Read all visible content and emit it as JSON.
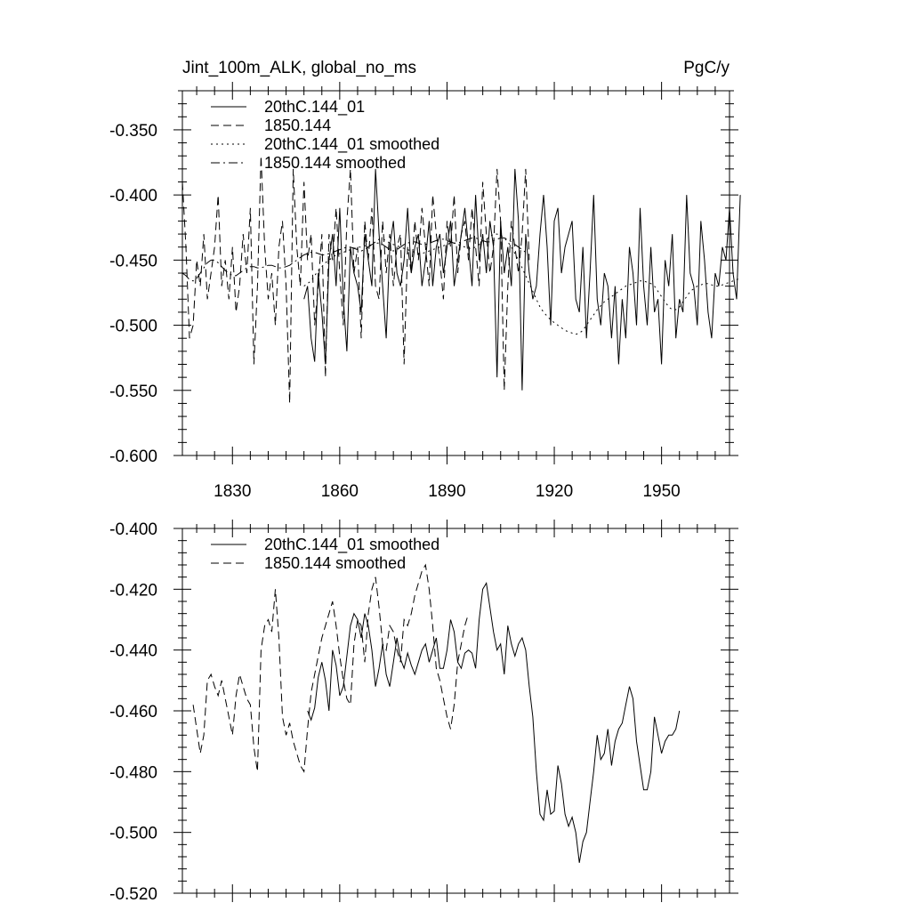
{
  "chart_data": [
    {
      "type": "line",
      "title": "Jint_100m_ALK, global_no_ms",
      "units": "PgC/y",
      "xlabel": "",
      "ylabel": "",
      "xlim": [
        1816,
        1969
      ],
      "ylim": [
        -0.6,
        -0.32
      ],
      "xticks": [
        1830,
        1860,
        1890,
        1920,
        1950
      ],
      "xtick_labels": [
        "1830",
        "1860",
        "1890",
        "1920",
        "1950"
      ],
      "yticks": [
        -0.35,
        -0.4,
        -0.45,
        -0.5,
        -0.55,
        -0.6
      ],
      "ytick_labels": [
        "-0.350",
        "-0.400",
        "-0.450",
        "-0.500",
        "-0.550",
        "-0.600"
      ],
      "legend_position": "top-left",
      "series": [
        {
          "name": "20thC.144_01",
          "style": "solid",
          "x_start": 1850,
          "values": [
            -0.48,
            -0.47,
            -0.51,
            -0.528,
            -0.46,
            -0.49,
            -0.53,
            -0.45,
            -0.43,
            -0.47,
            -0.41,
            -0.48,
            -0.52,
            -0.44,
            -0.46,
            -0.47,
            -0.49,
            -0.43,
            -0.45,
            -0.47,
            -0.38,
            -0.43,
            -0.47,
            -0.51,
            -0.44,
            -0.42,
            -0.46,
            -0.47,
            -0.45,
            -0.41,
            -0.46,
            -0.44,
            -0.43,
            -0.47,
            -0.45,
            -0.42,
            -0.47,
            -0.44,
            -0.43,
            -0.46,
            -0.44,
            -0.42,
            -0.47,
            -0.45,
            -0.43,
            -0.41,
            -0.44,
            -0.47,
            -0.4,
            -0.45,
            -0.43,
            -0.46,
            -0.42,
            -0.44,
            -0.54,
            -0.42,
            -0.46,
            -0.44,
            -0.47,
            -0.38,
            -0.42,
            -0.55,
            -0.43,
            -0.46,
            -0.48,
            -0.47,
            -0.43,
            -0.4,
            -0.44,
            -0.5,
            -0.42,
            -0.41,
            -0.46,
            -0.44,
            -0.43,
            -0.42,
            -0.48,
            -0.49,
            -0.44,
            -0.51,
            -0.46,
            -0.4,
            -0.48,
            -0.5,
            -0.46,
            -0.47,
            -0.51,
            -0.47,
            -0.53,
            -0.48,
            -0.51,
            -0.44,
            -0.46,
            -0.5,
            -0.41,
            -0.47,
            -0.5,
            -0.44,
            -0.49,
            -0.48,
            -0.53,
            -0.45,
            -0.47,
            -0.43,
            -0.51,
            -0.48,
            -0.49,
            -0.4,
            -0.46,
            -0.47,
            -0.5,
            -0.42,
            -0.45,
            -0.49,
            -0.51,
            -0.46,
            -0.47,
            -0.44,
            -0.45,
            -0.41,
            -0.46,
            -0.48,
            -0.4
          ]
        },
        {
          "name": "1850.144",
          "style": "dashed",
          "x_start": 1816,
          "values": [
            -0.39,
            -0.44,
            -0.51,
            -0.5,
            -0.45,
            -0.47,
            -0.43,
            -0.48,
            -0.46,
            -0.44,
            -0.4,
            -0.47,
            -0.45,
            -0.48,
            -0.44,
            -0.49,
            -0.47,
            -0.43,
            -0.46,
            -0.41,
            -0.53,
            -0.47,
            -0.37,
            -0.44,
            -0.48,
            -0.46,
            -0.5,
            -0.44,
            -0.42,
            -0.47,
            -0.56,
            -0.38,
            -0.44,
            -0.47,
            -0.39,
            -0.45,
            -0.43,
            -0.5,
            -0.47,
            -0.43,
            -0.54,
            -0.43,
            -0.45,
            -0.41,
            -0.46,
            -0.5,
            -0.42,
            -0.38,
            -0.46,
            -0.44,
            -0.51,
            -0.42,
            -0.45,
            -0.41,
            -0.47,
            -0.48,
            -0.42,
            -0.46,
            -0.43,
            -0.47,
            -0.44,
            -0.43,
            -0.53,
            -0.44,
            -0.46,
            -0.42,
            -0.45,
            -0.41,
            -0.44,
            -0.47,
            -0.4,
            -0.43,
            -0.45,
            -0.48,
            -0.42,
            -0.44,
            -0.4,
            -0.46,
            -0.43,
            -0.42,
            -0.45,
            -0.41,
            -0.44,
            -0.47,
            -0.39,
            -0.43,
            -0.46,
            -0.44,
            -0.38,
            -0.42,
            -0.55,
            -0.47,
            -0.42,
            -0.44,
            -0.46,
            -0.43,
            -0.38,
            -0.45
          ]
        },
        {
          "name": "20thC.144_01 smoothed",
          "style": "dotted",
          "x_start": 1850,
          "values": [
            -0.47,
            -0.468,
            -0.466,
            -0.462,
            -0.458,
            -0.455,
            -0.452,
            -0.45,
            -0.448,
            -0.446,
            -0.445,
            -0.444,
            -0.443,
            -0.442,
            -0.441,
            -0.44,
            -0.44,
            -0.439,
            -0.439,
            -0.438,
            -0.436,
            -0.434,
            -0.434,
            -0.435,
            -0.437,
            -0.438,
            -0.439,
            -0.44,
            -0.441,
            -0.442,
            -0.443,
            -0.444,
            -0.445,
            -0.445,
            -0.444,
            -0.443,
            -0.442,
            -0.441,
            -0.44,
            -0.439,
            -0.438,
            -0.437,
            -0.437,
            -0.438,
            -0.439,
            -0.44,
            -0.441,
            -0.441,
            -0.44,
            -0.438,
            -0.436,
            -0.434,
            -0.432,
            -0.43,
            -0.43,
            -0.431,
            -0.433,
            -0.436,
            -0.44,
            -0.445,
            -0.45,
            -0.456,
            -0.462,
            -0.468,
            -0.474,
            -0.48,
            -0.486,
            -0.49,
            -0.493,
            -0.496,
            -0.498,
            -0.5,
            -0.502,
            -0.504,
            -0.505,
            -0.506,
            -0.507,
            -0.506,
            -0.504,
            -0.5,
            -0.496,
            -0.492,
            -0.488,
            -0.485,
            -0.482,
            -0.48,
            -0.478,
            -0.476,
            -0.474,
            -0.472,
            -0.47,
            -0.469,
            -0.468,
            -0.467,
            -0.466,
            -0.466,
            -0.467,
            -0.468,
            -0.47,
            -0.474,
            -0.478,
            -0.482,
            -0.486,
            -0.488,
            -0.488,
            -0.486,
            -0.482,
            -0.478,
            -0.474,
            -0.472,
            -0.47,
            -0.469,
            -0.468,
            -0.468,
            -0.469,
            -0.47,
            -0.47,
            -0.469,
            -0.468,
            -0.467,
            -0.466,
            -0.465,
            -0.464
          ]
        },
        {
          "name": "1850.144 smoothed",
          "style": "dashdot",
          "x_start": 1816,
          "values": [
            -0.46,
            -0.462,
            -0.465,
            -0.466,
            -0.464,
            -0.46,
            -0.456,
            -0.452,
            -0.45,
            -0.45,
            -0.452,
            -0.455,
            -0.458,
            -0.46,
            -0.462,
            -0.462,
            -0.46,
            -0.458,
            -0.456,
            -0.455,
            -0.455,
            -0.456,
            -0.456,
            -0.455,
            -0.454,
            -0.454,
            -0.455,
            -0.456,
            -0.456,
            -0.455,
            -0.454,
            -0.452,
            -0.45,
            -0.448,
            -0.446,
            -0.445,
            -0.444,
            -0.444,
            -0.445,
            -0.446,
            -0.446,
            -0.445,
            -0.444,
            -0.443,
            -0.442,
            -0.441,
            -0.44,
            -0.44,
            -0.441,
            -0.442,
            -0.443,
            -0.442,
            -0.44,
            -0.438,
            -0.437,
            -0.437,
            -0.438,
            -0.44,
            -0.442,
            -0.443,
            -0.442,
            -0.44,
            -0.438,
            -0.437,
            -0.436,
            -0.436,
            -0.437,
            -0.438,
            -0.438,
            -0.437,
            -0.436,
            -0.435,
            -0.434,
            -0.434,
            -0.435,
            -0.436,
            -0.437,
            -0.437,
            -0.436,
            -0.435,
            -0.434,
            -0.433,
            -0.433,
            -0.434,
            -0.435,
            -0.436,
            -0.436,
            -0.435,
            -0.434,
            -0.433,
            -0.433,
            -0.434,
            -0.436,
            -0.438,
            -0.44,
            -0.442,
            -0.444,
            -0.446
          ]
        }
      ]
    },
    {
      "type": "line",
      "title": "",
      "xlabel": "",
      "ylabel": "",
      "xlim": [
        1816,
        1969
      ],
      "ylim": [
        -0.52,
        -0.4
      ],
      "xticks": [
        1830,
        1860,
        1890,
        1920,
        1950
      ],
      "yticks": [
        -0.4,
        -0.42,
        -0.44,
        -0.46,
        -0.48,
        -0.5,
        -0.52
      ],
      "ytick_labels": [
        "-0.400",
        "-0.420",
        "-0.440",
        "-0.460",
        "-0.480",
        "-0.500",
        "-0.520"
      ],
      "legend_position": "top-left",
      "series": [
        {
          "name": "20thC.144_01 smoothed",
          "style": "solid",
          "x_start": 1851,
          "values": [
            -0.46,
            -0.463,
            -0.459,
            -0.449,
            -0.444,
            -0.45,
            -0.46,
            -0.44,
            -0.445,
            -0.455,
            -0.452,
            -0.442,
            -0.432,
            -0.428,
            -0.43,
            -0.436,
            -0.428,
            -0.432,
            -0.44,
            -0.452,
            -0.446,
            -0.438,
            -0.448,
            -0.452,
            -0.444,
            -0.436,
            -0.443,
            -0.446,
            -0.441,
            -0.445,
            -0.448,
            -0.444,
            -0.44,
            -0.438,
            -0.444,
            -0.44,
            -0.436,
            -0.446,
            -0.446,
            -0.44,
            -0.43,
            -0.434,
            -0.444,
            -0.446,
            -0.441,
            -0.44,
            -0.441,
            -0.446,
            -0.43,
            -0.42,
            -0.418,
            -0.426,
            -0.434,
            -0.44,
            -0.438,
            -0.448,
            -0.432,
            -0.438,
            -0.442,
            -0.438,
            -0.436,
            -0.44,
            -0.452,
            -0.462,
            -0.48,
            -0.494,
            -0.496,
            -0.486,
            -0.494,
            -0.493,
            -0.478,
            -0.484,
            -0.494,
            -0.498,
            -0.495,
            -0.5,
            -0.51,
            -0.503,
            -0.5,
            -0.49,
            -0.48,
            -0.468,
            -0.476,
            -0.474,
            -0.466,
            -0.478,
            -0.47,
            -0.466,
            -0.464,
            -0.458,
            -0.452,
            -0.456,
            -0.47,
            -0.478,
            -0.486,
            -0.486,
            -0.48,
            -0.462,
            -0.468,
            -0.474,
            -0.47,
            -0.468,
            -0.468,
            -0.466,
            -0.46
          ]
        },
        {
          "name": "1850.144 smoothed",
          "style": "dashed",
          "x_start": 1819,
          "values": [
            -0.458,
            -0.466,
            -0.474,
            -0.468,
            -0.45,
            -0.448,
            -0.452,
            -0.455,
            -0.45,
            -0.456,
            -0.462,
            -0.468,
            -0.455,
            -0.448,
            -0.452,
            -0.456,
            -0.458,
            -0.472,
            -0.48,
            -0.44,
            -0.432,
            -0.43,
            -0.434,
            -0.42,
            -0.436,
            -0.462,
            -0.468,
            -0.464,
            -0.47,
            -0.474,
            -0.478,
            -0.48,
            -0.466,
            -0.454,
            -0.448,
            -0.442,
            -0.436,
            -0.432,
            -0.428,
            -0.424,
            -0.432,
            -0.442,
            -0.45,
            -0.456,
            -0.458,
            -0.438,
            -0.43,
            -0.432,
            -0.444,
            -0.428,
            -0.42,
            -0.416,
            -0.426,
            -0.438,
            -0.44,
            -0.432,
            -0.434,
            -0.44,
            -0.444,
            -0.43,
            -0.432,
            -0.428,
            -0.422,
            -0.418,
            -0.414,
            -0.412,
            -0.42,
            -0.432,
            -0.446,
            -0.45,
            -0.456,
            -0.462,
            -0.466,
            -0.458,
            -0.444,
            -0.438,
            -0.432,
            -0.428
          ]
        }
      ]
    }
  ]
}
